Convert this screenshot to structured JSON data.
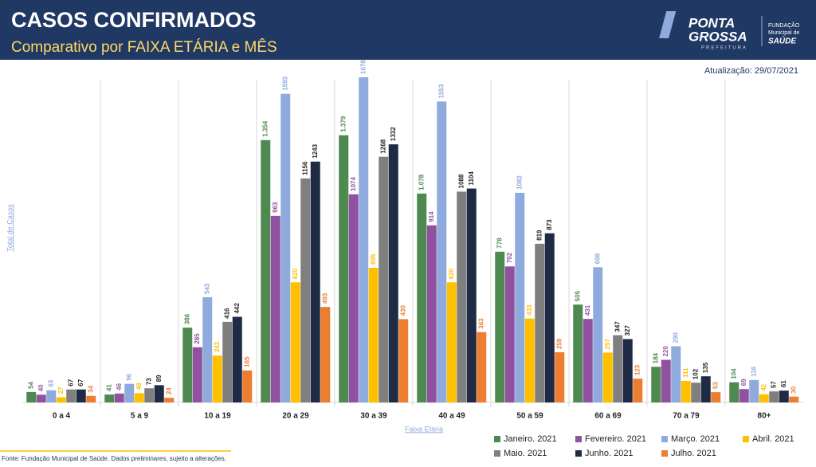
{
  "logo": {
    "name_top": "PONTA",
    "name_bottom": "GROSSA",
    "sub": "PREFEITURA",
    "foundation_1": "FUNDAÇÃO",
    "foundation_2": "Municipal de",
    "foundation_3": "SAÚDE"
  },
  "chart_data": {
    "type": "bar",
    "title": "CASOS CONFIRMADOS",
    "subtitle": "Comparativo por FAIXA ETÁRIA e MÊS",
    "updated": "Atualização: 29/07/2021",
    "source": "Fonte: Fundação Municipal de Saúde. Dados preliminares, sujeito a alterações.",
    "y_label": "Total de Casos",
    "x_label": "Faixa Etária",
    "categories": [
      "0 a 4",
      "5 a 9",
      "10 a 19",
      "20 a 29",
      "30 a 39",
      "40 a 49",
      "50 a 59",
      "60 a 69",
      "70 a 79",
      "80+"
    ],
    "series": [
      {
        "name": "Janeiro. 2021",
        "color": "#4e8a50",
        "values": [
          54,
          41,
          386,
          1354,
          1379,
          1078,
          778,
          505,
          184,
          104
        ],
        "value_labels": [
          "54",
          "41",
          "386",
          "1.354",
          "1.379",
          "1.078",
          "778",
          "505",
          "184",
          "104"
        ]
      },
      {
        "name": "Fevereiro. 2021",
        "color": "#9051a0",
        "values": [
          40,
          46,
          285,
          963,
          1074,
          914,
          702,
          431,
          220,
          69
        ]
      },
      {
        "name": "Março. 2021",
        "color": "#8faadc",
        "values": [
          63,
          96,
          543,
          1593,
          1678,
          1553,
          1082,
          698,
          290,
          116
        ]
      },
      {
        "name": "Abril. 2021",
        "color": "#ffc000",
        "values": [
          27,
          48,
          242,
          620,
          695,
          620,
          433,
          257,
          111,
          42
        ]
      },
      {
        "name": "Maio. 2021",
        "color": "#7f7f7f",
        "values": [
          67,
          73,
          416,
          1156,
          1268,
          1088,
          819,
          347,
          102,
          57
        ]
      },
      {
        "name": "Junho. 2021",
        "color": "#1f2a44",
        "values": [
          67,
          89,
          442,
          1243,
          1332,
          1104,
          873,
          327,
          135,
          61
        ]
      },
      {
        "name": "Julho. 2021",
        "color": "#ed7d31",
        "values": [
          34,
          24,
          165,
          493,
          430,
          363,
          259,
          123,
          53,
          30
        ]
      }
    ]
  }
}
